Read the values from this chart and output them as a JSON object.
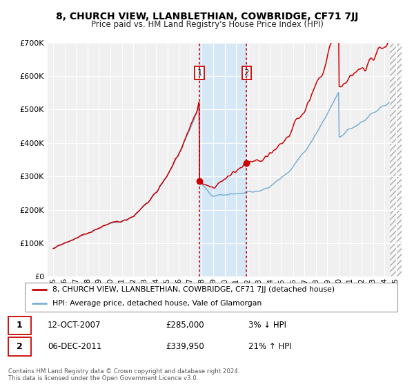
{
  "title": "8, CHURCH VIEW, LLANBLETHIAN, COWBRIDGE, CF71 7JJ",
  "subtitle": "Price paid vs. HM Land Registry's House Price Index (HPI)",
  "legend_line1": "8, CHURCH VIEW, LLANBLETHIAN, COWBRIDGE, CF71 7JJ (detached house)",
  "legend_line2": "HPI: Average price, detached house, Vale of Glamorgan",
  "marker1_text": "12-OCT-2007",
  "marker1_price_str": "£285,000",
  "marker1_hpi_str": "3% ↓ HPI",
  "marker2_text": "06-DEC-2011",
  "marker2_price_str": "£339,950",
  "marker2_hpi_str": "21% ↑ HPI",
  "footer_line1": "Contains HM Land Registry data © Crown copyright and database right 2024.",
  "footer_line2": "This data is licensed under the Open Government Licence v3.0.",
  "red_color": "#cc0000",
  "blue_color": "#7ab0d4",
  "highlight_color": "#d6e8f5",
  "background_color": "#f0f0f0",
  "grid_color": "#ffffff",
  "marker1_year": 2007.79,
  "marker1_price": 285000,
  "marker2_year": 2011.92,
  "marker2_price": 339950,
  "xmin": 1994.5,
  "xmax": 2025.5,
  "ymin": 0,
  "ymax": 700000,
  "future_start": 2024.5
}
